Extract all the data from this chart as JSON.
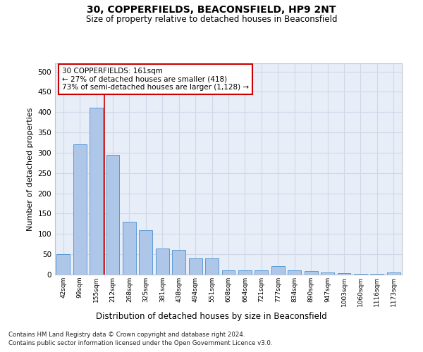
{
  "title": "30, COPPERFIELDS, BEACONSFIELD, HP9 2NT",
  "subtitle": "Size of property relative to detached houses in Beaconsfield",
  "xlabel": "Distribution of detached houses by size in Beaconsfield",
  "ylabel": "Number of detached properties",
  "footnote1": "Contains HM Land Registry data © Crown copyright and database right 2024.",
  "footnote2": "Contains public sector information licensed under the Open Government Licence v3.0.",
  "categories": [
    "42sqm",
    "99sqm",
    "155sqm",
    "212sqm",
    "268sqm",
    "325sqm",
    "381sqm",
    "438sqm",
    "494sqm",
    "551sqm",
    "608sqm",
    "664sqm",
    "721sqm",
    "777sqm",
    "834sqm",
    "890sqm",
    "947sqm",
    "1003sqm",
    "1060sqm",
    "1116sqm",
    "1173sqm"
  ],
  "values": [
    50,
    320,
    410,
    295,
    130,
    110,
    65,
    60,
    40,
    40,
    10,
    10,
    10,
    20,
    10,
    8,
    5,
    3,
    2,
    1,
    5
  ],
  "bar_color": "#aec6e8",
  "bar_edge_color": "#5b9bd5",
  "grid_color": "#d0d8e8",
  "background_color": "#e8eef8",
  "vline_color": "#cc0000",
  "annotation_text": "30 COPPERFIELDS: 161sqm\n← 27% of detached houses are smaller (418)\n73% of semi-detached houses are larger (1,128) →",
  "annotation_box_color": "#ffffff",
  "annotation_box_edge": "#cc0000",
  "ylim": [
    0,
    520
  ],
  "yticks": [
    0,
    50,
    100,
    150,
    200,
    250,
    300,
    350,
    400,
    450,
    500
  ],
  "fig_width": 6.0,
  "fig_height": 5.0,
  "dpi": 100
}
